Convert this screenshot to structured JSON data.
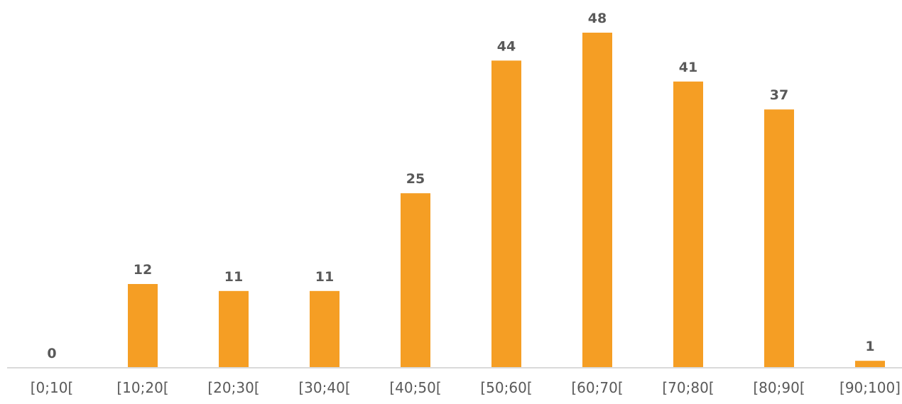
{
  "chart_data": {
    "type": "bar",
    "title": "",
    "xlabel": "",
    "ylabel": "",
    "categories": [
      "[0;10[",
      "[10;20[",
      "[20;30[",
      "[30;40[",
      "[40;50[",
      "[50;60[",
      "[60;70[",
      "[70;80[",
      "[80;90[",
      "[90;100]"
    ],
    "values": [
      0,
      12,
      11,
      11,
      25,
      44,
      48,
      41,
      37,
      1
    ],
    "ylim": [
      0,
      48
    ],
    "grid": false,
    "legend": "none",
    "data_labels": true,
    "colors": {
      "bar": "#F59E24",
      "axis": "#D9D9D9",
      "text": "#595959"
    }
  }
}
